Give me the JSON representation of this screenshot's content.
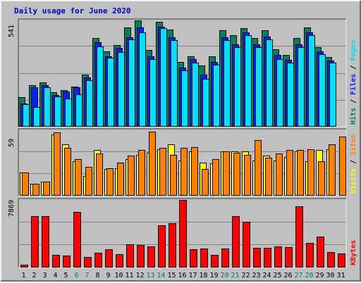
{
  "colors": {
    "hits": "#00805c",
    "files": "#0024ff",
    "pages": "#00e0ff",
    "visits": "#ffff00",
    "sites": "#ff8000",
    "kbytes": "#ff0000",
    "background": "#c0c0c0",
    "title": "#0000c8",
    "weekend_day": "#00805c"
  },
  "chart_data": {
    "type": "bar",
    "title": "Daily usage for June 2020",
    "days": [
      "1",
      "2",
      "3",
      "4",
      "5",
      "6",
      "7",
      "8",
      "9",
      "10",
      "11",
      "12",
      "13",
      "14",
      "15",
      "16",
      "17",
      "18",
      "19",
      "20",
      "21",
      "22",
      "23",
      "24",
      "25",
      "26",
      "27",
      "28",
      "29",
      "30",
      "31"
    ],
    "weekend_days": [
      "6",
      "7",
      "13",
      "14",
      "20",
      "21",
      "27",
      "28"
    ],
    "panels": [
      {
        "name": "hits-files-pages",
        "ymax_label": "541",
        "ymax": 541,
        "right_labels": [
          {
            "text": "Hits",
            "color": "#00805c"
          },
          {
            "text": " / ",
            "color": "#000000"
          },
          {
            "text": "Files",
            "color": "#0024ff"
          },
          {
            "text": " / ",
            "color": "#000000"
          },
          {
            "text": "Pages",
            "color": "#00e0ff"
          }
        ],
        "series": [
          {
            "name": "Hits",
            "color": "#00805c",
            "values": [
              150,
              210,
              225,
              175,
              185,
              205,
              265,
              450,
              385,
              415,
              505,
              540,
              390,
              535,
              495,
              330,
              360,
              310,
              360,
              490,
              465,
              500,
              450,
              490,
              395,
              365,
              450,
              505,
              405,
              355,
              0
            ]
          },
          {
            "name": "Files",
            "color": "#0024ff",
            "values": [
              120,
              200,
              210,
              160,
              180,
              200,
              250,
              430,
              360,
              400,
              455,
              505,
              360,
              510,
              455,
              300,
              345,
              265,
              330,
              455,
              420,
              480,
              420,
              460,
              365,
              340,
              420,
              480,
              385,
              335,
              0
            ]
          },
          {
            "name": "Pages",
            "color": "#00e0ff",
            "values": [
              115,
              100,
              200,
              155,
              145,
              165,
              235,
              410,
              350,
              380,
              445,
              480,
              345,
              500,
              440,
              285,
              325,
              245,
              315,
              440,
              405,
              465,
              405,
              445,
              345,
              325,
              405,
              465,
              370,
              325,
              0
            ]
          }
        ]
      },
      {
        "name": "visits-sites",
        "ymax_label": "59",
        "ymax": 59,
        "right_labels": [
          {
            "text": "Visits",
            "color": "#ffff00"
          },
          {
            "text": " / ",
            "color": "#000000"
          },
          {
            "text": "Sites",
            "color": "#ff8000"
          }
        ],
        "series": [
          {
            "name": "Visits",
            "color": "#ffff00",
            "values": [
              21,
              11,
              13,
              55,
              46,
              31,
              18,
              41,
              24,
              25,
              33,
              37,
              39,
              42,
              46,
              32,
              40,
              30,
              29,
              40,
              40,
              40,
              32,
              36,
              32,
              35,
              40,
              31,
              41,
              42,
              0
            ]
          },
          {
            "name": "Sites",
            "color": "#ff8000",
            "values": [
              21,
              11,
              13,
              57,
              43,
              33,
              26,
              38,
              25,
              30,
              36,
              41,
              58,
              43,
              37,
              43,
              44,
              24,
              33,
              40,
              39,
              37,
              50,
              34,
              38,
              41,
              41,
              42,
              31,
              46,
              53
            ]
          }
        ]
      },
      {
        "name": "kbytes",
        "ymax_label": "7869",
        "ymax": 7869,
        "right_labels": [
          {
            "text": "KBytes",
            "color": "#ff0000"
          }
        ],
        "series": [
          {
            "name": "KBytes",
            "color": "#ff0000",
            "values": [
              310,
              5950,
              6000,
              1500,
              1390,
              6500,
              1250,
              1700,
              2100,
              1550,
              2700,
              2600,
              2500,
              4900,
              5200,
              7869,
              2100,
              2200,
              1500,
              2250,
              6000,
              5300,
              2300,
              2300,
              2460,
              2400,
              7100,
              2860,
              3600,
              1800,
              1650
            ]
          }
        ]
      }
    ]
  }
}
